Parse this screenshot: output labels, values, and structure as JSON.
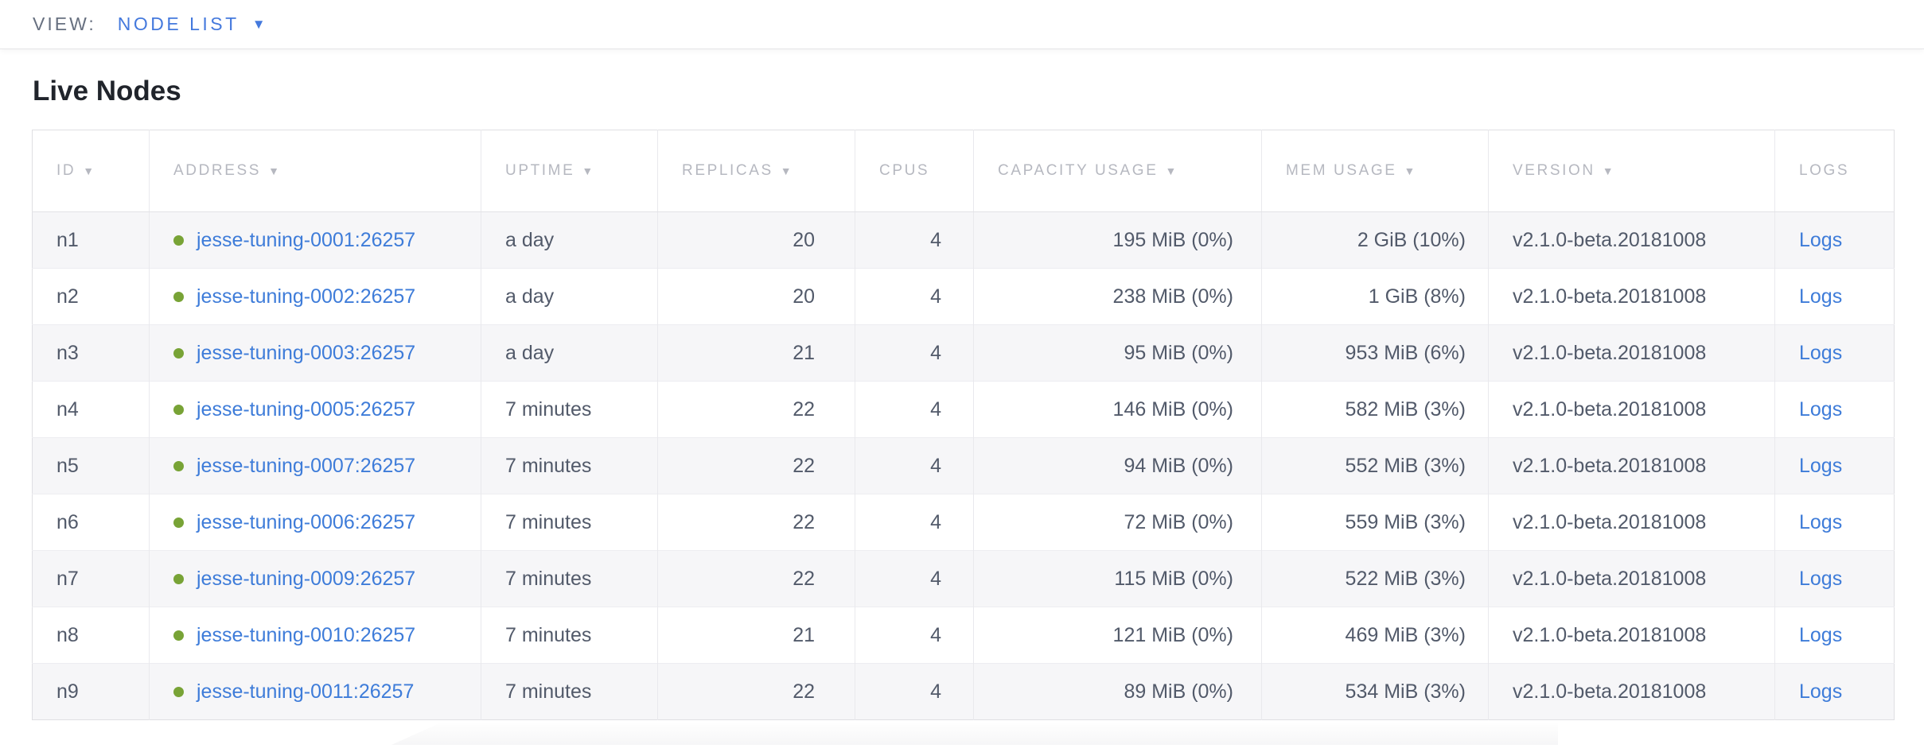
{
  "view_bar": {
    "label": "VIEW:",
    "selected": "NODE LIST",
    "caret": "▼"
  },
  "page": {
    "title": "Live Nodes"
  },
  "colors": {
    "accent_blue": "#4479dd",
    "link_blue": "#3e7cd9",
    "live_green": "#78a336",
    "header_text": "#b6b8c0",
    "body_text": "#525a6a"
  },
  "table": {
    "sort_arrow": "▼",
    "columns": [
      {
        "label": "ID",
        "sortable": true
      },
      {
        "label": "ADDRESS",
        "sortable": true
      },
      {
        "label": "UPTIME",
        "sortable": true
      },
      {
        "label": "REPLICAS",
        "sortable": true
      },
      {
        "label": "CPUS",
        "sortable": false
      },
      {
        "label": "CAPACITY USAGE",
        "sortable": true
      },
      {
        "label": "MEM USAGE",
        "sortable": true
      },
      {
        "label": "VERSION",
        "sortable": true
      },
      {
        "label": "LOGS",
        "sortable": false
      }
    ],
    "rows": [
      {
        "id": "n1",
        "status": "live",
        "address": "jesse-tuning-0001:26257",
        "uptime": "a day",
        "replicas": "20",
        "cpus": "4",
        "capacity": "195 MiB (0%)",
        "mem": "2 GiB (10%)",
        "version": "v2.1.0-beta.20181008",
        "logs": "Logs"
      },
      {
        "id": "n2",
        "status": "live",
        "address": "jesse-tuning-0002:26257",
        "uptime": "a day",
        "replicas": "20",
        "cpus": "4",
        "capacity": "238 MiB (0%)",
        "mem": "1 GiB (8%)",
        "version": "v2.1.0-beta.20181008",
        "logs": "Logs"
      },
      {
        "id": "n3",
        "status": "live",
        "address": "jesse-tuning-0003:26257",
        "uptime": "a day",
        "replicas": "21",
        "cpus": "4",
        "capacity": "95 MiB (0%)",
        "mem": "953 MiB (6%)",
        "version": "v2.1.0-beta.20181008",
        "logs": "Logs"
      },
      {
        "id": "n4",
        "status": "live",
        "address": "jesse-tuning-0005:26257",
        "uptime": "7 minutes",
        "replicas": "22",
        "cpus": "4",
        "capacity": "146 MiB (0%)",
        "mem": "582 MiB (3%)",
        "version": "v2.1.0-beta.20181008",
        "logs": "Logs"
      },
      {
        "id": "n5",
        "status": "live",
        "address": "jesse-tuning-0007:26257",
        "uptime": "7 minutes",
        "replicas": "22",
        "cpus": "4",
        "capacity": "94 MiB (0%)",
        "mem": "552 MiB (3%)",
        "version": "v2.1.0-beta.20181008",
        "logs": "Logs"
      },
      {
        "id": "n6",
        "status": "live",
        "address": "jesse-tuning-0006:26257",
        "uptime": "7 minutes",
        "replicas": "22",
        "cpus": "4",
        "capacity": "72 MiB (0%)",
        "mem": "559 MiB (3%)",
        "version": "v2.1.0-beta.20181008",
        "logs": "Logs"
      },
      {
        "id": "n7",
        "status": "live",
        "address": "jesse-tuning-0009:26257",
        "uptime": "7 minutes",
        "replicas": "22",
        "cpus": "4",
        "capacity": "115 MiB (0%)",
        "mem": "522 MiB (3%)",
        "version": "v2.1.0-beta.20181008",
        "logs": "Logs"
      },
      {
        "id": "n8",
        "status": "live",
        "address": "jesse-tuning-0010:26257",
        "uptime": "7 minutes",
        "replicas": "21",
        "cpus": "4",
        "capacity": "121 MiB (0%)",
        "mem": "469 MiB (3%)",
        "version": "v2.1.0-beta.20181008",
        "logs": "Logs"
      },
      {
        "id": "n9",
        "status": "live",
        "address": "jesse-tuning-0011:26257",
        "uptime": "7 minutes",
        "replicas": "22",
        "cpus": "4",
        "capacity": "89 MiB (0%)",
        "mem": "534 MiB (3%)",
        "version": "v2.1.0-beta.20181008",
        "logs": "Logs"
      }
    ]
  }
}
